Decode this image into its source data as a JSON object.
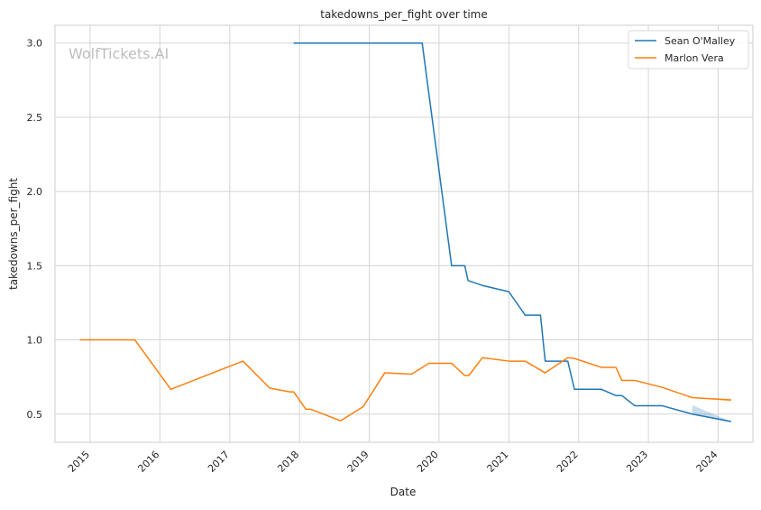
{
  "chart_data": {
    "type": "line",
    "title": "takedowns_per_fight over time",
    "xlabel": "Date",
    "ylabel": "takedowns_per_fight",
    "watermark": "WolfTickets.AI",
    "x_ticks": [
      "2015",
      "2016",
      "2017",
      "2018",
      "2019",
      "2020",
      "2021",
      "2022",
      "2023",
      "2024"
    ],
    "y_ticks": [
      "0.5",
      "1.0",
      "1.5",
      "2.0",
      "2.5",
      "3.0"
    ],
    "xlim": [
      "2014-07-01",
      "2024-07-01"
    ],
    "ylim": [
      0.31,
      3.12
    ],
    "grid": true,
    "legend_position": "top-right",
    "series": [
      {
        "name": "Sean O'Malley",
        "color": "#1f77b4",
        "points": [
          [
            "2017-12-01",
            3.0
          ],
          [
            "2019-10-05",
            3.0
          ],
          [
            "2020-03-07",
            1.5
          ],
          [
            "2020-05-15",
            1.5
          ],
          [
            "2020-06-01",
            1.4
          ],
          [
            "2020-08-15",
            1.367
          ],
          [
            "2020-12-31",
            1.325
          ],
          [
            "2021-03-27",
            1.167
          ],
          [
            "2021-06-15",
            1.167
          ],
          [
            "2021-07-10",
            0.857
          ],
          [
            "2021-11-05",
            0.857
          ],
          [
            "2021-12-10",
            0.667
          ],
          [
            "2022-04-30",
            0.667
          ],
          [
            "2022-07-15",
            0.625
          ],
          [
            "2022-08-15",
            0.625
          ],
          [
            "2022-10-22",
            0.556
          ],
          [
            "2023-03-15",
            0.556
          ],
          [
            "2023-08-19",
            0.5
          ],
          [
            "2024-03-09",
            0.45
          ]
        ],
        "band": [
          [
            "2023-08-19",
            0.5,
            0.56
          ],
          [
            "2024-03-09",
            0.45,
            0.45
          ]
        ]
      },
      {
        "name": "Marlon Vera",
        "color": "#ff7f0e",
        "points": [
          [
            "2014-11-08",
            1.0
          ],
          [
            "2015-08-23",
            1.0
          ],
          [
            "2016-02-27",
            0.667
          ],
          [
            "2017-03-11",
            0.857
          ],
          [
            "2017-07-29",
            0.675
          ],
          [
            "2017-11-10",
            0.65
          ],
          [
            "2017-12-01",
            0.65
          ],
          [
            "2018-02-03",
            0.533
          ],
          [
            "2018-02-28",
            0.533
          ],
          [
            "2018-08-04",
            0.455
          ],
          [
            "2018-11-30",
            0.55
          ],
          [
            "2019-03-23",
            0.778
          ],
          [
            "2019-08-10",
            0.769
          ],
          [
            "2019-11-09",
            0.842
          ],
          [
            "2020-03-07",
            0.842
          ],
          [
            "2020-05-15",
            0.76
          ],
          [
            "2020-06-05",
            0.76
          ],
          [
            "2020-08-15",
            0.88
          ],
          [
            "2020-12-31",
            0.857
          ],
          [
            "2021-03-27",
            0.857
          ],
          [
            "2021-07-10",
            0.778
          ],
          [
            "2021-11-05",
            0.88
          ],
          [
            "2021-12-10",
            0.875
          ],
          [
            "2022-04-30",
            0.815
          ],
          [
            "2022-07-15",
            0.815
          ],
          [
            "2022-08-15",
            0.727
          ],
          [
            "2022-10-22",
            0.727
          ],
          [
            "2023-03-15",
            0.68
          ],
          [
            "2023-08-19",
            0.611
          ],
          [
            "2024-03-09",
            0.595
          ]
        ],
        "band": [
          [
            "2023-08-19",
            0.611,
            0.611
          ],
          [
            "2024-03-09",
            0.585,
            0.605
          ]
        ]
      }
    ]
  }
}
